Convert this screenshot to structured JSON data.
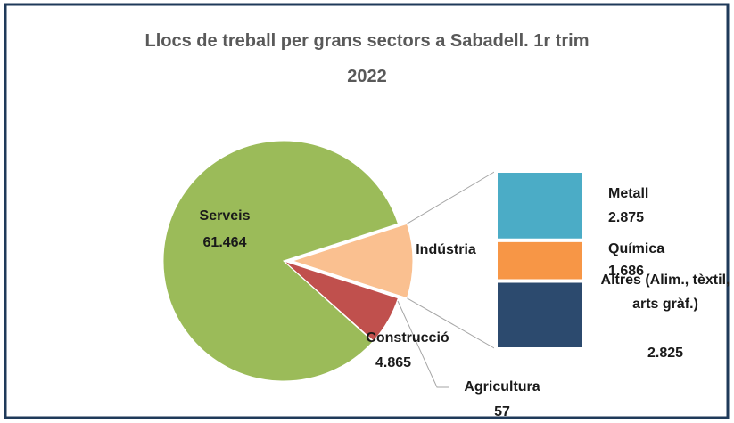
{
  "chart_data": {
    "type": "pie",
    "title": "Llocs de treball per grans sectors a Sabadell. 1r trim 2022",
    "categories": [
      "Serveis",
      "Indústria",
      "Construcció",
      "Agricultura"
    ],
    "values": [
      61464,
      7386,
      4865,
      57
    ],
    "value_labels": [
      "61.464",
      null,
      "4.865",
      "57"
    ],
    "colors": [
      "#9bbb59",
      "#fac090",
      "#c0504d",
      "#4bacc6"
    ],
    "breakout": {
      "categories": [
        "Metall",
        "Química",
        "Altres (Alim., tèxtil, arts gràf.)"
      ],
      "values": [
        2875,
        1686,
        2825
      ],
      "value_labels": [
        "2.875",
        "1.686",
        "2.825"
      ],
      "colors": [
        "#4bacc6",
        "#f79646",
        "#2c4a6e"
      ]
    }
  }
}
